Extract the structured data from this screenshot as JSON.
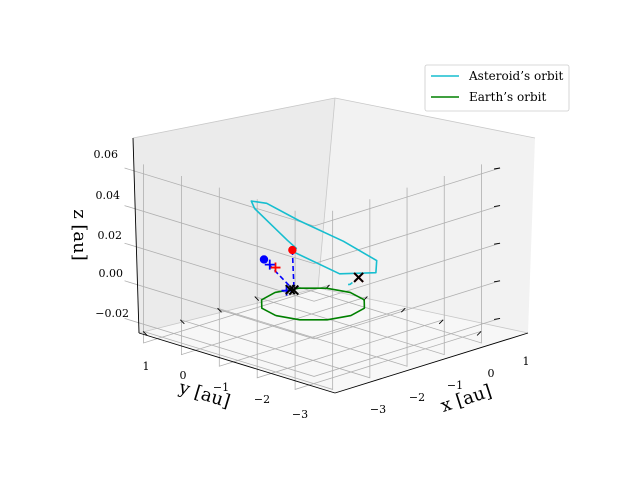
{
  "chart_data": {
    "type": "line",
    "projection": "3d",
    "title": "",
    "xlabel": "x [au]",
    "ylabel": "y [au]",
    "zlabel": "z [au]",
    "xlim": [
      -3.5,
      1.5
    ],
    "ylim": [
      -3.5,
      1.5
    ],
    "zlim": [
      -0.03,
      0.065
    ],
    "x_ticks": [
      "1",
      "0",
      "−1",
      "−2",
      "−3"
    ],
    "y_ticks": [
      "1",
      "0",
      "−1",
      "−2",
      "−3"
    ],
    "z_ticks": [
      "0.06",
      "0.04",
      "0.02",
      "0.00",
      "−0.02"
    ],
    "grid": true,
    "legend": {
      "placement": "top-right",
      "entries": [
        {
          "label": "Asteroid’s orbit",
          "color": "#17becf"
        },
        {
          "label": "Earth’s orbit",
          "color": "#008000"
        }
      ]
    },
    "series": [
      {
        "name": "Asteroid’s orbit",
        "color": "#17becf",
        "style": "solid",
        "x": [
          -2.42,
          -2.65,
          -2.2,
          -1.1,
          0.3,
          1.3,
          1.55,
          1.25,
          0.55,
          -0.45,
          -1.45,
          -2.2,
          -2.42
        ],
        "y": [
          -2.9,
          -1.9,
          -0.5,
          0.6,
          1.1,
          0.9,
          0.3,
          -0.4,
          -1.0,
          -1.55,
          -2.1,
          -2.6,
          -2.9
        ],
        "z": [
          -0.005,
          -0.012,
          0.0,
          0.02,
          0.042,
          0.058,
          0.065,
          0.06,
          0.048,
          0.03,
          0.012,
          0.0,
          -0.005
        ]
      },
      {
        "name": "Earth’s orbit",
        "color": "#008000",
        "style": "solid",
        "x": [
          1.0,
          0.866,
          0.5,
          0.0,
          -0.5,
          -0.866,
          -1.0,
          -0.866,
          -0.5,
          0.0,
          0.5,
          0.866,
          1.0
        ],
        "y": [
          0.0,
          0.5,
          0.866,
          1.0,
          0.866,
          0.5,
          0.0,
          -0.5,
          -0.866,
          -1.0,
          -0.866,
          -0.5,
          0.0
        ],
        "z": [
          0,
          0,
          0,
          0,
          0,
          0,
          0,
          0,
          0,
          0,
          0,
          0,
          0
        ]
      },
      {
        "color": "#0000ff",
        "style": "dashed",
        "x": [
          -2.4,
          -1.2,
          0.0,
          0.35
        ],
        "y": [
          -2.9,
          -1.7,
          -0.5,
          -0.95
        ],
        "z": [
          -0.004,
          0.0,
          0.004,
          0.02
        ]
      },
      {
        "color": "#17becf",
        "style": "dashed",
        "x": [
          0.2,
          0.12,
          0.05
        ],
        "y": [
          1.4,
          1.1,
          0.9
        ],
        "z": [
          0.024,
          0.018,
          0.016
        ]
      }
    ],
    "markers": [
      {
        "type": "circle",
        "color": "#ff0000",
        "x": -2.4,
        "y": -2.9,
        "z": -0.004
      },
      {
        "type": "circle",
        "color": "#0000ff",
        "x": 0.35,
        "y": -0.95,
        "z": 0.02
      },
      {
        "type": "x",
        "color": "#ff0000",
        "x": 0.2,
        "y": 1.4,
        "z": 0.024
      },
      {
        "type": "x",
        "color": "#000000",
        "x": 0.2,
        "y": 1.4,
        "z": 0.024
      },
      {
        "type": "plus",
        "color": "#ff0000",
        "x": 0.55,
        "y": -0.45,
        "z": 0.02
      },
      {
        "type": "plus",
        "color": "#0000ff",
        "x": 0.5,
        "y": -0.65,
        "z": 0.02
      },
      {
        "type": "plus",
        "color": "#0000ff",
        "x": 0.1,
        "y": -0.6,
        "z": 0.004
      },
      {
        "type": "x",
        "color": "#000000",
        "x": 0.0,
        "y": -0.6,
        "z": 0.004
      },
      {
        "type": "x",
        "color": "#000000",
        "x": -0.35,
        "y": -0.85,
        "z": 0.0
      }
    ]
  }
}
